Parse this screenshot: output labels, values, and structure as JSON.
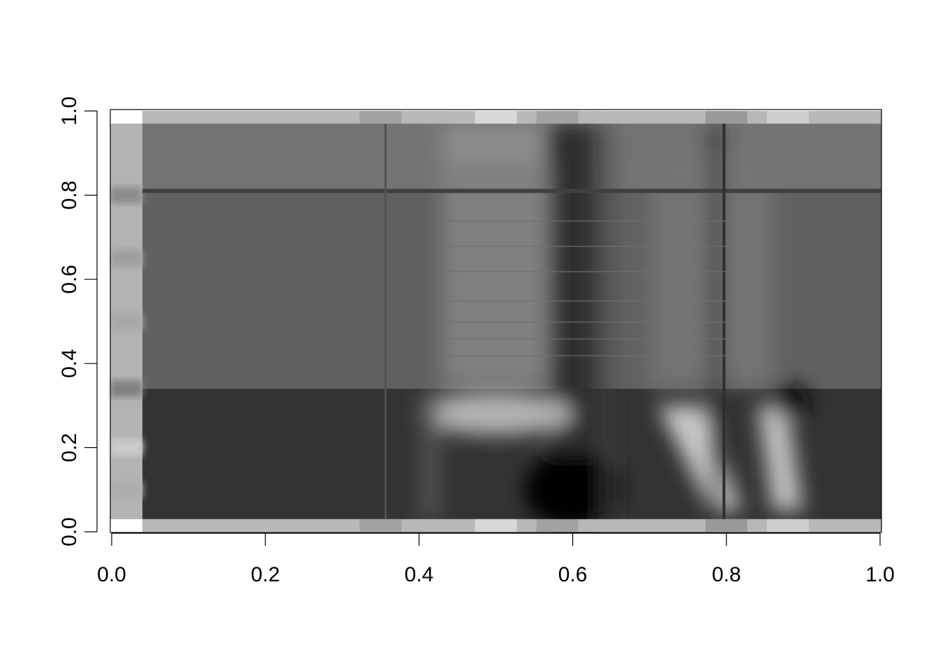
{
  "chart_data": {
    "type": "heatmap",
    "title": "",
    "xlabel": "",
    "ylabel": "",
    "xlim": [
      0,
      1
    ],
    "ylim": [
      0,
      1
    ],
    "x_ticks": [
      "0.0",
      "0.2",
      "0.4",
      "0.6",
      "0.8",
      "1.0"
    ],
    "y_ticks": [
      "0.0",
      "0.2",
      "0.4",
      "0.6",
      "0.8",
      "1.0"
    ],
    "colormap": "grayscale",
    "grid": false,
    "legend": "none",
    "columns": [
      {
        "x_from": 0.0,
        "x_to": 0.04,
        "label": "reference column"
      },
      {
        "x_from": 0.04,
        "x_to": 1.0,
        "label": "main field"
      }
    ],
    "bands": [
      {
        "y_from": 0.97,
        "y_to": 1.0,
        "level": 0.72
      },
      {
        "y_from": 0.81,
        "y_to": 0.97,
        "level": 0.45
      },
      {
        "y_from": 0.34,
        "y_to": 0.81,
        "level": 0.38
      },
      {
        "y_from": 0.03,
        "y_to": 0.34,
        "level": 0.2
      },
      {
        "y_from": 0.0,
        "y_to": 0.03,
        "level": 0.72
      }
    ],
    "features": [
      {
        "kind": "bright region",
        "x_center": 0.5,
        "y_center": 0.28,
        "level": 0.7
      },
      {
        "kind": "dark blob",
        "x_center": 0.6,
        "y_center": 0.08,
        "level": 0.0
      },
      {
        "kind": "dark vertical streak",
        "x_center": 0.6,
        "level": 0.15
      },
      {
        "kind": "bright diagonal streak",
        "x_center": 0.76,
        "y_center": 0.2,
        "level": 0.8
      },
      {
        "kind": "bright diagonal streak",
        "x_center": 0.86,
        "y_center": 0.2,
        "level": 0.8
      },
      {
        "kind": "dark vertical line",
        "x_center": 0.79,
        "level": 0.1
      },
      {
        "kind": "dark blob",
        "x_center": 0.88,
        "y_center": 0.31,
        "level": 0.05
      }
    ]
  }
}
